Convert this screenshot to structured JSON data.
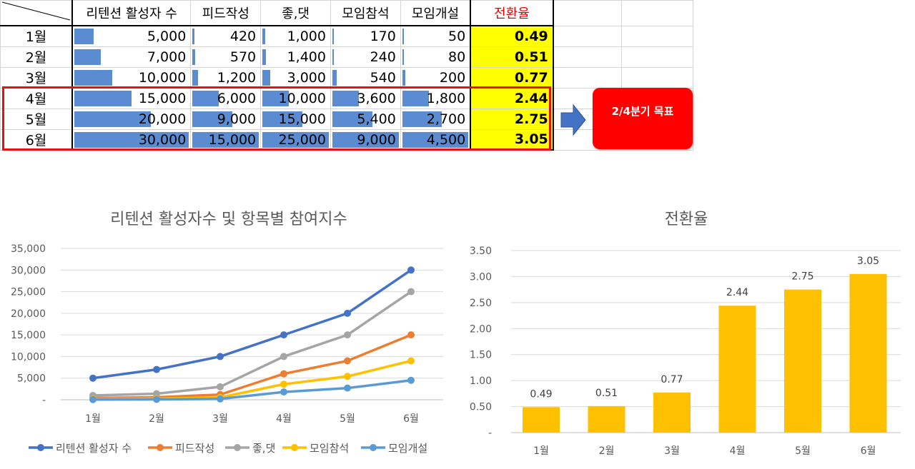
{
  "table": {
    "headers": [
      "리텐션 활성자 수",
      "피드작성",
      "좋,댓",
      "모임참석",
      "모임개설",
      "전환율"
    ],
    "rows": [
      {
        "month": "1월",
        "values": [
          "5,000",
          "420",
          "1,000",
          "170",
          "50"
        ],
        "rate": "0.49"
      },
      {
        "month": "2월",
        "values": [
          "7,000",
          "570",
          "1,400",
          "240",
          "80"
        ],
        "rate": "0.51"
      },
      {
        "month": "3월",
        "values": [
          "10,000",
          "1,200",
          "3,000",
          "540",
          "200"
        ],
        "rate": "0.77"
      },
      {
        "month": "4월",
        "values": [
          "15,000",
          "6,000",
          "10,000",
          "3,600",
          "1,800"
        ],
        "rate": "2.44"
      },
      {
        "month": "5월",
        "values": [
          "20,000",
          "9,000",
          "15,000",
          "5,400",
          "2,700"
        ],
        "rate": "2.75"
      },
      {
        "month": "6월",
        "values": [
          "30,000",
          "15,000",
          "25,000",
          "9,000",
          "4,500"
        ],
        "rate": "3.05"
      }
    ],
    "column_max": [
      30000,
      15000,
      25000,
      9000,
      4500
    ],
    "highlight_label": "2/4분기 목표",
    "colors": {
      "data_bar": "#5b8bd0",
      "rate_fill": "#ffff00",
      "rate_header": "#e00000",
      "highlight": "#e81010"
    }
  },
  "chart_data": [
    {
      "type": "line",
      "title": "리텐션 활성자수 및 항목별 참여지수",
      "categories": [
        "1월",
        "2월",
        "3월",
        "4월",
        "5월",
        "6월"
      ],
      "series": [
        {
          "name": "리텐션 활성자 수",
          "values": [
            5000,
            7000,
            10000,
            15000,
            20000,
            30000
          ],
          "color": "#4472c4"
        },
        {
          "name": "피드작성",
          "values": [
            420,
            570,
            1200,
            6000,
            9000,
            15000
          ],
          "color": "#ed7d31"
        },
        {
          "name": "좋,댓",
          "values": [
            1000,
            1400,
            3000,
            10000,
            15000,
            25000
          ],
          "color": "#a5a5a5"
        },
        {
          "name": "모임참석",
          "values": [
            170,
            240,
            540,
            3600,
            5400,
            9000
          ],
          "color": "#ffc000"
        },
        {
          "name": "모임개설",
          "values": [
            50,
            80,
            200,
            1800,
            2700,
            4500
          ],
          "color": "#5b9bd5"
        }
      ],
      "ylim": [
        0,
        35000
      ],
      "yticks": [
        "-",
        "5,000",
        "10,000",
        "15,000",
        "20,000",
        "25,000",
        "30,000",
        "35,000"
      ],
      "grid": true,
      "legend": "bottom"
    },
    {
      "type": "bar",
      "title": "전환율",
      "categories": [
        "1월",
        "2월",
        "3월",
        "4월",
        "5월",
        "6월"
      ],
      "values": [
        0.49,
        0.51,
        0.77,
        2.44,
        2.75,
        3.05
      ],
      "labels": [
        "0.49",
        "0.51",
        "0.77",
        "2.44",
        "2.75",
        "3.05"
      ],
      "ylim": [
        0,
        3.5
      ],
      "yticks": [
        "-",
        "0.50",
        "1.00",
        "1.50",
        "2.00",
        "2.50",
        "3.00",
        "3.50"
      ],
      "grid": true,
      "color": "#ffc000"
    }
  ]
}
